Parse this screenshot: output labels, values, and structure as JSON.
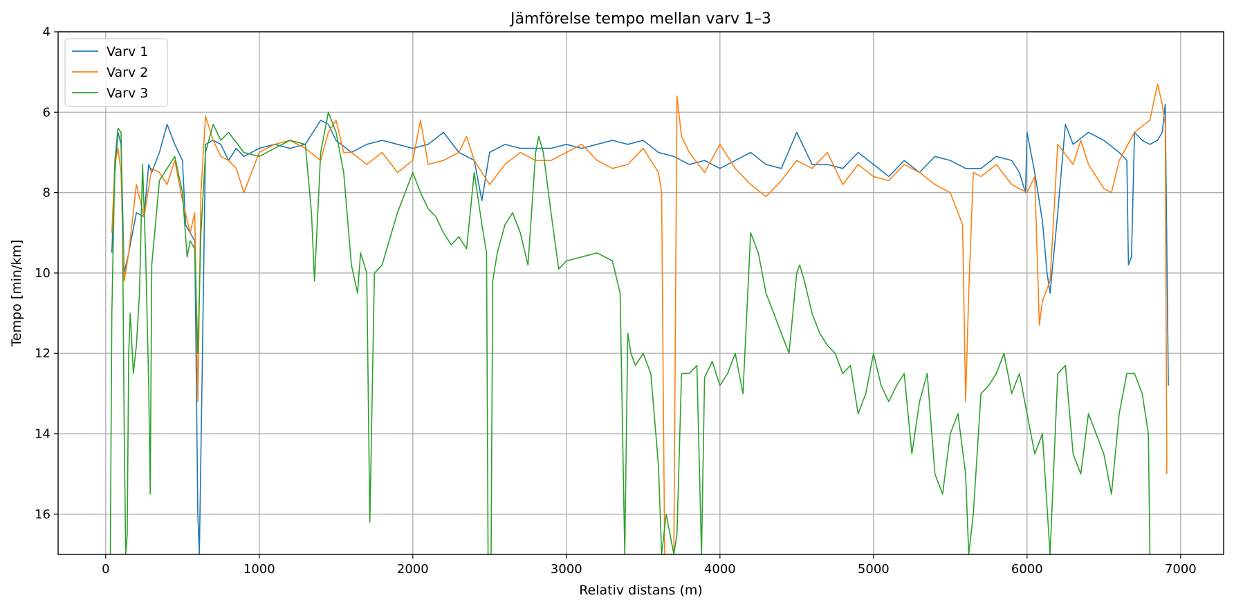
{
  "chart_data": {
    "type": "line",
    "title": "Jämförelse tempo mellan varv 1–3",
    "xlabel": "Relativ distans (m)",
    "ylabel": "Tempo [min/km]",
    "xlim": [
      -310,
      7280
    ],
    "ylim": [
      17,
      4
    ],
    "y_inverted": true,
    "grid": true,
    "legend_position": "top-left",
    "x_ticks": [
      "0",
      "1000",
      "2000",
      "3000",
      "4000",
      "5000",
      "6000",
      "7000"
    ],
    "y_ticks": [
      "4",
      "6",
      "8",
      "10",
      "12",
      "14",
      "16"
    ],
    "series": [
      {
        "name": "Varv 1",
        "color": "#1f77b4",
        "x": [
          40,
          60,
          80,
          100,
          120,
          150,
          200,
          250,
          280,
          300,
          350,
          400,
          450,
          500,
          520,
          550,
          580,
          600,
          610,
          630,
          650,
          700,
          750,
          800,
          850,
          900,
          1000,
          1100,
          1200,
          1300,
          1400,
          1450,
          1500,
          1600,
          1700,
          1800,
          1900,
          2000,
          2100,
          2200,
          2300,
          2400,
          2450,
          2500,
          2600,
          2700,
          2800,
          2900,
          3000,
          3100,
          3200,
          3300,
          3400,
          3500,
          3600,
          3700,
          3800,
          3900,
          4000,
          4100,
          4200,
          4300,
          4400,
          4500,
          4600,
          4700,
          4800,
          4900,
          5000,
          5100,
          5200,
          5300,
          5400,
          5500,
          5600,
          5700,
          5800,
          5900,
          5950,
          5990,
          6000,
          6050,
          6100,
          6130,
          6150,
          6200,
          6250,
          6300,
          6400,
          6500,
          6600,
          6650,
          6660,
          6680,
          6700,
          6750,
          6800,
          6850,
          6880,
          6900,
          6920
        ],
        "y": [
          9.5,
          7.5,
          6.5,
          6.8,
          10.0,
          9.5,
          8.5,
          8.6,
          7.3,
          7.5,
          7.0,
          6.3,
          6.8,
          7.2,
          8.8,
          9.0,
          9.2,
          16.0,
          17.0,
          12.0,
          6.8,
          6.7,
          6.8,
          7.2,
          6.9,
          7.1,
          6.9,
          6.8,
          6.9,
          6.8,
          6.2,
          6.3,
          6.7,
          7.0,
          6.8,
          6.7,
          6.8,
          6.9,
          6.8,
          6.5,
          7.0,
          7.2,
          8.2,
          7.0,
          6.8,
          6.9,
          6.9,
          6.9,
          6.8,
          6.9,
          6.8,
          6.7,
          6.8,
          6.7,
          7.0,
          7.1,
          7.3,
          7.2,
          7.4,
          7.2,
          7.0,
          7.3,
          7.4,
          6.5,
          7.3,
          7.3,
          7.4,
          7.0,
          7.3,
          7.6,
          7.2,
          7.5,
          7.1,
          7.2,
          7.4,
          7.4,
          7.1,
          7.2,
          7.5,
          8.0,
          6.5,
          7.5,
          8.7,
          10.0,
          10.5,
          8.5,
          6.3,
          6.8,
          6.5,
          6.7,
          7.0,
          7.2,
          9.8,
          9.6,
          6.5,
          6.7,
          6.8,
          6.7,
          6.5,
          5.8,
          12.8
        ]
      },
      {
        "name": "Varv 2",
        "color": "#ff7f0e",
        "x": [
          40,
          60,
          80,
          100,
          120,
          150,
          200,
          250,
          300,
          350,
          400,
          450,
          500,
          550,
          580,
          600,
          620,
          650,
          700,
          750,
          800,
          850,
          900,
          1000,
          1100,
          1200,
          1300,
          1400,
          1450,
          1500,
          1550,
          1600,
          1700,
          1800,
          1900,
          2000,
          2050,
          2100,
          2200,
          2300,
          2350,
          2400,
          2500,
          2600,
          2700,
          2800,
          2900,
          3000,
          3100,
          3200,
          3300,
          3400,
          3500,
          3600,
          3620,
          3640,
          3660,
          3680,
          3700,
          3720,
          3750,
          3800,
          3900,
          4000,
          4100,
          4200,
          4300,
          4400,
          4500,
          4600,
          4700,
          4800,
          4900,
          5000,
          5100,
          5200,
          5300,
          5400,
          5500,
          5580,
          5600,
          5620,
          5650,
          5700,
          5800,
          5900,
          6000,
          6050,
          6080,
          6100,
          6150,
          6200,
          6300,
          6350,
          6400,
          6500,
          6550,
          6600,
          6700,
          6800,
          6850,
          6880,
          6900,
          6910
        ],
        "y": [
          9.0,
          7.3,
          6.9,
          7.5,
          10.2,
          9.5,
          7.8,
          8.6,
          7.4,
          7.5,
          7.8,
          7.2,
          8.2,
          9.0,
          8.5,
          13.2,
          8.0,
          6.1,
          6.7,
          7.1,
          7.2,
          7.4,
          8.0,
          7.0,
          6.8,
          6.7,
          6.9,
          7.2,
          6.5,
          6.2,
          7.0,
          7.0,
          7.3,
          7.0,
          7.5,
          7.2,
          6.2,
          7.3,
          7.2,
          7.0,
          6.6,
          7.2,
          7.8,
          7.3,
          7.0,
          7.2,
          7.2,
          7.0,
          6.8,
          7.2,
          7.4,
          7.3,
          6.9,
          7.5,
          8.0,
          17.0,
          17.0,
          17.0,
          17.0,
          5.6,
          6.6,
          7.0,
          7.5,
          6.8,
          7.4,
          7.8,
          8.1,
          7.7,
          7.2,
          7.4,
          7.0,
          7.8,
          7.3,
          7.6,
          7.7,
          7.3,
          7.5,
          7.8,
          8.0,
          8.8,
          13.2,
          10.5,
          7.5,
          7.6,
          7.3,
          7.8,
          8.0,
          7.6,
          11.3,
          10.7,
          10.2,
          6.8,
          7.3,
          6.7,
          7.3,
          7.9,
          8.0,
          7.2,
          6.5,
          6.2,
          5.3,
          5.8,
          6.3,
          15.0
        ]
      },
      {
        "name": "Varv 3",
        "color": "#2ca02c",
        "x": [
          30,
          40,
          60,
          80,
          100,
          110,
          120,
          130,
          140,
          150,
          160,
          180,
          200,
          220,
          240,
          260,
          280,
          290,
          300,
          350,
          400,
          450,
          500,
          530,
          550,
          580,
          600,
          620,
          650,
          700,
          750,
          800,
          900,
          1000,
          1100,
          1200,
          1300,
          1340,
          1360,
          1400,
          1450,
          1500,
          1550,
          1600,
          1640,
          1660,
          1700,
          1720,
          1750,
          1800,
          1900,
          2000,
          2050,
          2100,
          2150,
          2200,
          2250,
          2300,
          2350,
          2400,
          2450,
          2480,
          2490,
          2500,
          2510,
          2520,
          2550,
          2600,
          2650,
          2700,
          2750,
          2800,
          2820,
          2850,
          2900,
          2950,
          3000,
          3100,
          3200,
          3300,
          3350,
          3380,
          3400,
          3420,
          3450,
          3500,
          3550,
          3600,
          3620,
          3650,
          3700,
          3720,
          3750,
          3800,
          3850,
          3880,
          3900,
          3950,
          4000,
          4050,
          4100,
          4150,
          4200,
          4250,
          4300,
          4350,
          4400,
          4450,
          4500,
          4520,
          4550,
          4600,
          4650,
          4700,
          4750,
          4800,
          4850,
          4900,
          4950,
          5000,
          5050,
          5100,
          5150,
          5200,
          5250,
          5300,
          5350,
          5400,
          5450,
          5500,
          5550,
          5600,
          5620,
          5650,
          5700,
          5750,
          5800,
          5850,
          5900,
          5950,
          6000,
          6050,
          6100,
          6150,
          6200,
          6250,
          6300,
          6350,
          6400,
          6450,
          6500,
          6550,
          6600,
          6650,
          6700,
          6750,
          6790,
          6800
        ],
        "y": [
          17.0,
          11.0,
          7.2,
          6.4,
          6.5,
          9.0,
          13.8,
          17.0,
          16.5,
          12.0,
          11.0,
          12.5,
          11.8,
          10.5,
          7.3,
          9.5,
          12.8,
          15.5,
          9.8,
          7.7,
          7.4,
          7.1,
          8.0,
          9.6,
          9.2,
          9.4,
          12.0,
          9.0,
          7.0,
          6.3,
          6.7,
          6.5,
          7.0,
          7.1,
          6.9,
          6.7,
          6.8,
          8.5,
          10.2,
          7.0,
          6.0,
          6.5,
          7.5,
          9.8,
          10.5,
          9.5,
          10.0,
          16.2,
          10.0,
          9.8,
          8.5,
          7.5,
          8.0,
          8.4,
          8.6,
          9.0,
          9.3,
          9.1,
          9.4,
          7.5,
          8.8,
          9.5,
          17.0,
          17.0,
          17.0,
          10.2,
          9.5,
          8.8,
          8.5,
          9.0,
          9.8,
          7.0,
          6.6,
          7.0,
          8.5,
          9.9,
          9.7,
          9.6,
          9.5,
          9.7,
          10.5,
          17.0,
          11.5,
          12.0,
          12.3,
          12.0,
          12.5,
          14.8,
          17.0,
          16.0,
          17.0,
          16.5,
          12.5,
          12.5,
          12.3,
          17.0,
          12.6,
          12.2,
          12.8,
          12.5,
          12.0,
          13.0,
          9.0,
          9.5,
          10.5,
          11.0,
          11.5,
          12.0,
          10.0,
          9.8,
          10.2,
          11.0,
          11.5,
          11.8,
          12.0,
          12.5,
          12.3,
          13.5,
          13.0,
          12.0,
          12.8,
          13.2,
          12.8,
          12.5,
          14.5,
          13.2,
          12.5,
          15.0,
          15.5,
          14.0,
          13.5,
          15.0,
          17.0,
          16.0,
          13.0,
          12.8,
          12.5,
          12.0,
          13.0,
          12.5,
          13.5,
          14.5,
          14.0,
          17.0,
          12.5,
          12.3,
          14.5,
          15.0,
          13.5,
          14.0,
          14.5,
          15.5,
          13.5,
          12.5,
          12.5,
          13.0,
          14.0,
          17.0
        ]
      }
    ]
  }
}
